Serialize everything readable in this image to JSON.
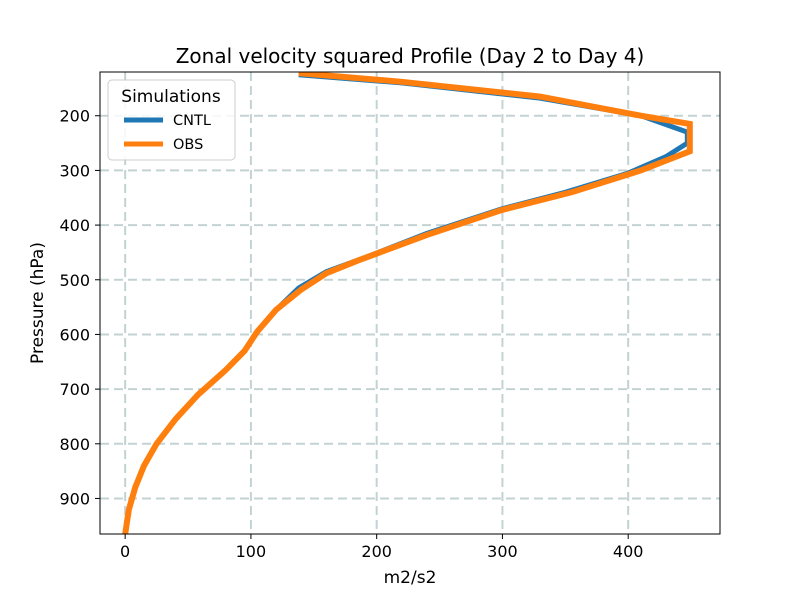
{
  "chart_data": {
    "type": "line",
    "title": "Zonal velocity squared Profile (Day 2 to Day 4)",
    "xlabel": "m2/s2",
    "ylabel": "Pressure (hPa)",
    "xlim": [
      -20,
      473
    ],
    "ylim": [
      965,
      120
    ],
    "y_inverted": true,
    "x_ticks": [
      0,
      100,
      200,
      300,
      400
    ],
    "y_ticks": [
      200,
      300,
      400,
      500,
      600,
      700,
      800,
      900
    ],
    "grid": true,
    "legend": {
      "title": "Simulations",
      "position": "top-left"
    },
    "series": [
      {
        "name": "CNTL",
        "color": "#1f77b4",
        "points": [
          [
            138,
            125
          ],
          [
            220,
            140
          ],
          [
            330,
            168
          ],
          [
            410,
            200
          ],
          [
            447,
            230
          ],
          [
            447,
            250
          ],
          [
            430,
            275
          ],
          [
            400,
            305
          ],
          [
            350,
            340
          ],
          [
            300,
            370
          ],
          [
            240,
            415
          ],
          [
            190,
            460
          ],
          [
            160,
            485
          ],
          [
            138,
            515
          ],
          [
            120,
            555
          ],
          [
            105,
            595
          ],
          [
            95,
            630
          ],
          [
            80,
            665
          ],
          [
            58,
            710
          ],
          [
            40,
            755
          ],
          [
            25,
            800
          ],
          [
            15,
            840
          ],
          [
            8,
            880
          ],
          [
            3,
            920
          ],
          [
            1,
            950
          ],
          [
            0,
            965
          ]
        ]
      },
      {
        "name": "OBS",
        "color": "#ff7f0e",
        "points": [
          [
            138,
            122
          ],
          [
            220,
            138
          ],
          [
            330,
            165
          ],
          [
            410,
            200
          ],
          [
            449,
            215
          ],
          [
            449,
            265
          ],
          [
            410,
            300
          ],
          [
            355,
            340
          ],
          [
            300,
            372
          ],
          [
            240,
            418
          ],
          [
            185,
            465
          ],
          [
            160,
            488
          ],
          [
            140,
            518
          ],
          [
            120,
            555
          ],
          [
            105,
            595
          ],
          [
            95,
            630
          ],
          [
            80,
            665
          ],
          [
            58,
            710
          ],
          [
            40,
            755
          ],
          [
            25,
            800
          ],
          [
            15,
            840
          ],
          [
            8,
            880
          ],
          [
            3,
            920
          ],
          [
            1,
            950
          ],
          [
            0,
            965
          ]
        ]
      }
    ]
  }
}
